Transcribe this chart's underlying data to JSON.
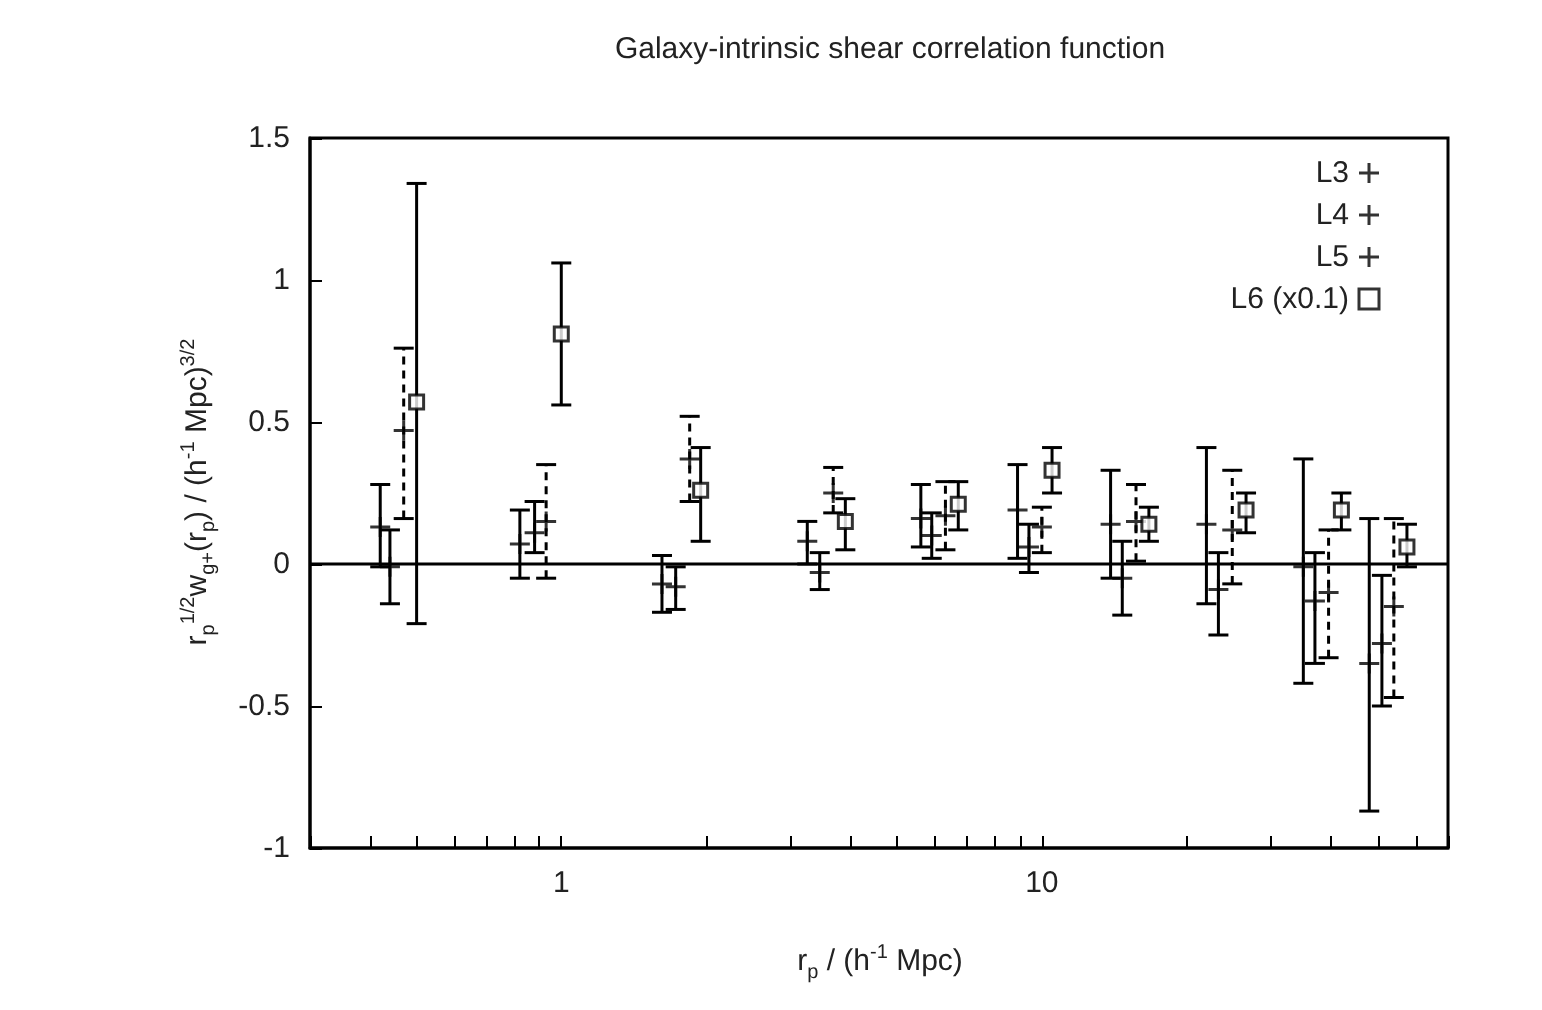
{
  "chart_data": {
    "type": "scatter",
    "title": "Galaxy-intrinsic shear correlation function",
    "xlabel": "r$_{p}$ / (h$^{-1}$ Mpc)",
    "ylabel": "r$_{p}$$^{1/2}$w$_{g+}$(r$_{p}$) / (h$^{-1}$ Mpc)$^{3/2}$",
    "log": "x",
    "grid": false,
    "legend": "top right",
    "xlim": [
      0.3,
      70
    ],
    "xticks": [
      {
        "value": 0.3,
        "label": null
      },
      {
        "value": 0.4,
        "label": null
      },
      {
        "value": 0.5,
        "label": null
      },
      {
        "value": 0.6,
        "label": null
      },
      {
        "value": 0.7,
        "label": null
      },
      {
        "value": 0.8,
        "label": null
      },
      {
        "value": 0.9,
        "label": null
      },
      1,
      {
        "value": 2,
        "label": null
      },
      {
        "value": 3,
        "label": null
      },
      {
        "value": 4,
        "label": null
      },
      {
        "value": 5,
        "label": null
      },
      {
        "value": 6,
        "label": null
      },
      {
        "value": 7,
        "label": null
      },
      {
        "value": 8,
        "label": null
      },
      {
        "value": 9,
        "label": null
      },
      10,
      {
        "value": 20,
        "label": null
      },
      {
        "value": 30,
        "label": null
      },
      {
        "value": 40,
        "label": null
      },
      {
        "value": 50,
        "label": null
      },
      {
        "value": 60,
        "label": null
      },
      {
        "value": 70,
        "label": null
      }
    ],
    "ylim": [
      -1,
      1.5
    ],
    "yticks": [
      -1,
      -0.5,
      0,
      0.5,
      1,
      1.5
    ],
    "ref_lines": [
      {
        "axis": "y",
        "value": 0,
        "label": null,
        "color": "#000000"
      }
    ],
    "series": [
      {
        "name": "L3",
        "color": "#000000",
        "marker": "cross",
        "line_style": "solid",
        "x": [
          0.42,
          0.82,
          1.62,
          3.25,
          5.6,
          8.9,
          13.9,
          22,
          35,
          48
        ],
        "values": [
          0.13,
          0.07,
          -0.07,
          0.08,
          0.16,
          0.19,
          0.14,
          0.14,
          -0.01,
          -0.35
        ],
        "errors": [
          [
            -0.01,
            0.28
          ],
          [
            -0.05,
            0.19
          ],
          [
            -0.17,
            0.03
          ],
          [
            0,
            0.15
          ],
          [
            0.06,
            0.28
          ],
          [
            0.02,
            0.35
          ],
          [
            -0.05,
            0.33
          ],
          [
            -0.14,
            0.41
          ],
          [
            -0.42,
            0.37
          ],
          [
            -0.87,
            0.16
          ]
        ]
      },
      {
        "name": "L4",
        "color": "#000000",
        "marker": "cross",
        "line_style": "solid",
        "x": [
          0.44,
          0.88,
          1.73,
          3.45,
          5.9,
          9.4,
          14.7,
          23.3,
          37,
          51
        ],
        "values": [
          -0.01,
          0.11,
          -0.08,
          -0.03,
          0.1,
          0.06,
          -0.05,
          -0.09,
          -0.13,
          -0.28
        ],
        "errors": [
          [
            -0.14,
            0.12
          ],
          [
            0.04,
            0.22
          ],
          [
            -0.16,
            -0.01
          ],
          [
            -0.09,
            0.04
          ],
          [
            0.02,
            0.18
          ],
          [
            -0.03,
            0.14
          ],
          [
            -0.18,
            0.08
          ],
          [
            -0.25,
            0.04
          ],
          [
            -0.35,
            0.04
          ],
          [
            -0.5,
            -0.04
          ]
        ]
      },
      {
        "name": "L5",
        "color": "#000000",
        "marker": "cross",
        "line_style": "dashed",
        "x": [
          0.47,
          0.93,
          1.85,
          3.68,
          6.3,
          10,
          15.7,
          24.9,
          39.5,
          54
        ],
        "values": [
          0.47,
          0.15,
          0.37,
          0.25,
          0.17,
          0.13,
          0.15,
          0.12,
          -0.1,
          -0.15
        ],
        "errors": [
          [
            0.16,
            0.76
          ],
          [
            -0.05,
            0.35
          ],
          [
            0.22,
            0.52
          ],
          [
            0.18,
            0.34
          ],
          [
            0.05,
            0.29
          ],
          [
            0.04,
            0.2
          ],
          [
            0.01,
            0.28
          ],
          [
            -0.07,
            0.33
          ],
          [
            -0.33,
            0.12
          ],
          [
            -0.47,
            0.16
          ]
        ]
      },
      {
        "name": "L6 (x0.1)",
        "color": "#000000",
        "marker": "square",
        "line_style": "solid",
        "x": [
          0.5,
          1,
          1.95,
          3.9,
          6.7,
          10.5,
          16.7,
          26.6,
          42,
          57.5
        ],
        "values": [
          0.57,
          0.81,
          0.26,
          0.15,
          0.21,
          0.33,
          0.14,
          0.19,
          0.19,
          0.06
        ],
        "errors": [
          [
            -0.21,
            1.34
          ],
          [
            0.56,
            1.06
          ],
          [
            0.08,
            0.41
          ],
          [
            0.05,
            0.23
          ],
          [
            0.12,
            0.29
          ],
          [
            0.25,
            0.41
          ],
          [
            0.08,
            0.2
          ],
          [
            0.11,
            0.25
          ],
          [
            0.12,
            0.25
          ],
          [
            -0.01,
            0.14
          ]
        ]
      }
    ]
  }
}
